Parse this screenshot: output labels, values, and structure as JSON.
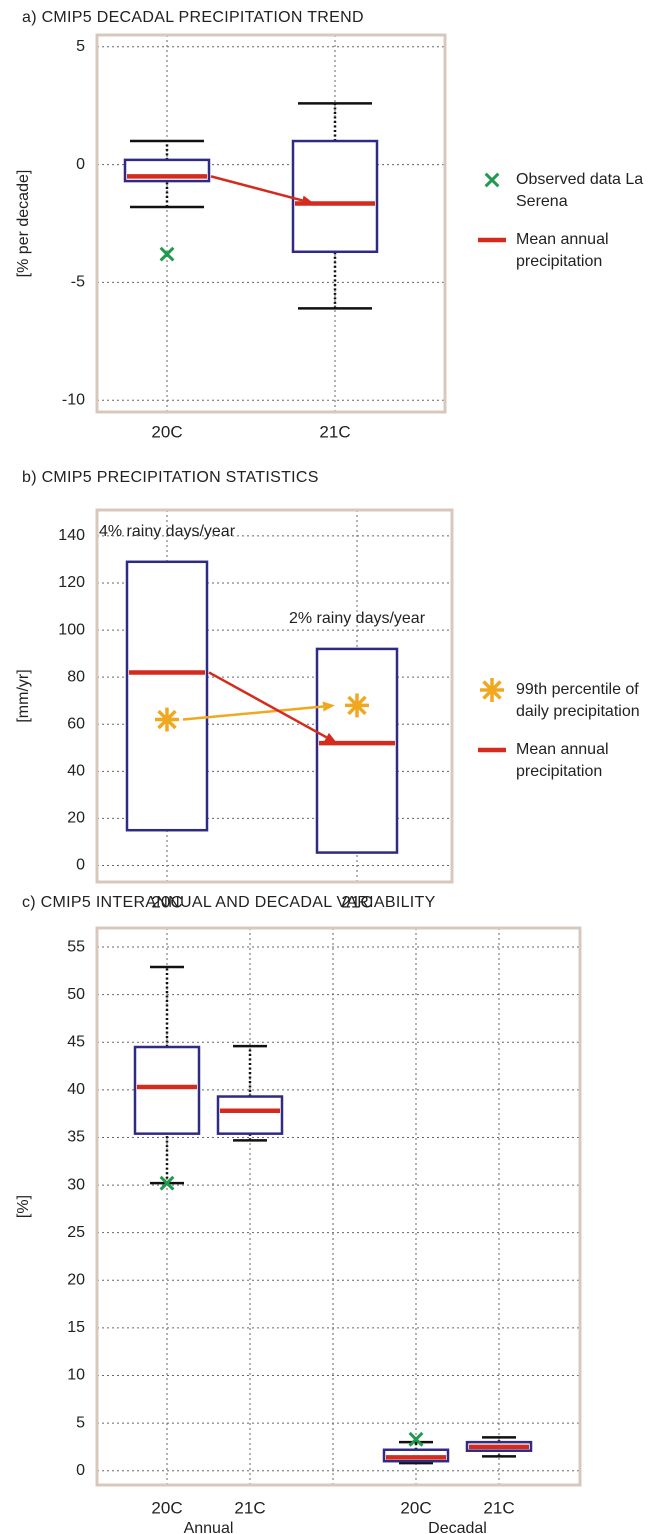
{
  "chart_data": [
    {
      "type": "box",
      "title": "a) CMIP5 DECADAL PRECIPITATION TREND",
      "ylabel": "[% per decade]",
      "categories": [
        "20C",
        "21C"
      ],
      "ylim": [
        -10.5,
        5.5
      ],
      "yticks": [
        -10,
        -5,
        0,
        5
      ],
      "grid": true,
      "box_color": "#2f2a84",
      "whisker_color": "#111111",
      "boxes": {
        "whisker_low": [
          -1.8,
          -6.1
        ],
        "q1": [
          -0.7,
          -3.7
        ],
        "q3": [
          0.2,
          1.0
        ],
        "whisker_high": [
          1.0,
          2.6
        ]
      },
      "series": [
        {
          "name": "Observed data La Serena",
          "color": "#1f9a4e",
          "marker": "x",
          "values": [
            -3.8,
            null
          ]
        },
        {
          "name": "Mean annual precipitation",
          "color": "#d52b1e",
          "marker": "line",
          "values": [
            -0.5,
            -1.65
          ],
          "trend_arrow": true
        }
      ],
      "legend": "right"
    },
    {
      "type": "box",
      "title": "b) CMIP5 PRECIPITATION STATISTICS",
      "ylabel": "[mm/yr]",
      "categories": [
        "20C",
        "21C"
      ],
      "ylim": [
        -7,
        151
      ],
      "yticks": [
        0,
        20,
        40,
        60,
        80,
        100,
        120,
        140
      ],
      "grid": true,
      "box_color": "#2f2a84",
      "boxes": {
        "q1": [
          15,
          5.5
        ],
        "q3": [
          129,
          92
        ]
      },
      "box_labels": [
        "4% rainy days/year",
        "2% rainy days/year"
      ],
      "series": [
        {
          "name": "99th percentile of daily precipitation",
          "color": "#f0a820",
          "marker": "asterisk",
          "values": [
            62,
            68
          ],
          "trend_arrow": true
        },
        {
          "name": "Mean annual precipitation",
          "color": "#d52b1e",
          "marker": "line",
          "values": [
            82,
            52
          ],
          "trend_arrow": true
        }
      ],
      "legend": "right"
    },
    {
      "type": "box",
      "title": "c) CMIP5 INTERANNUAL AND DECADAL VARIABILITY",
      "ylabel": "[%]",
      "categories": [
        "20C",
        "21C",
        null,
        "20C",
        "21C"
      ],
      "group_labels": [
        "Annual",
        "Decadal"
      ],
      "ylim": [
        -1.5,
        57
      ],
      "yticks": [
        0,
        5,
        10,
        15,
        20,
        25,
        30,
        35,
        40,
        45,
        50,
        55
      ],
      "grid": true,
      "box_color": "#2f2a84",
      "whisker_color": "#111111",
      "boxes": {
        "whisker_low": [
          30.2,
          34.7,
          null,
          0.8,
          1.5
        ],
        "q1": [
          35.4,
          35.4,
          null,
          1.0,
          2.1
        ],
        "q3": [
          44.5,
          39.3,
          null,
          2.2,
          3.0
        ],
        "whisker_high": [
          52.9,
          44.6,
          null,
          3.0,
          3.5
        ]
      },
      "series": [
        {
          "color": "#1f9a4e",
          "marker": "x",
          "values": [
            30.2,
            null,
            null,
            3.3,
            null
          ]
        },
        {
          "color": "#d52b1e",
          "marker": "line",
          "values": [
            40.3,
            37.8,
            null,
            1.4,
            2.5
          ]
        }
      ]
    }
  ]
}
